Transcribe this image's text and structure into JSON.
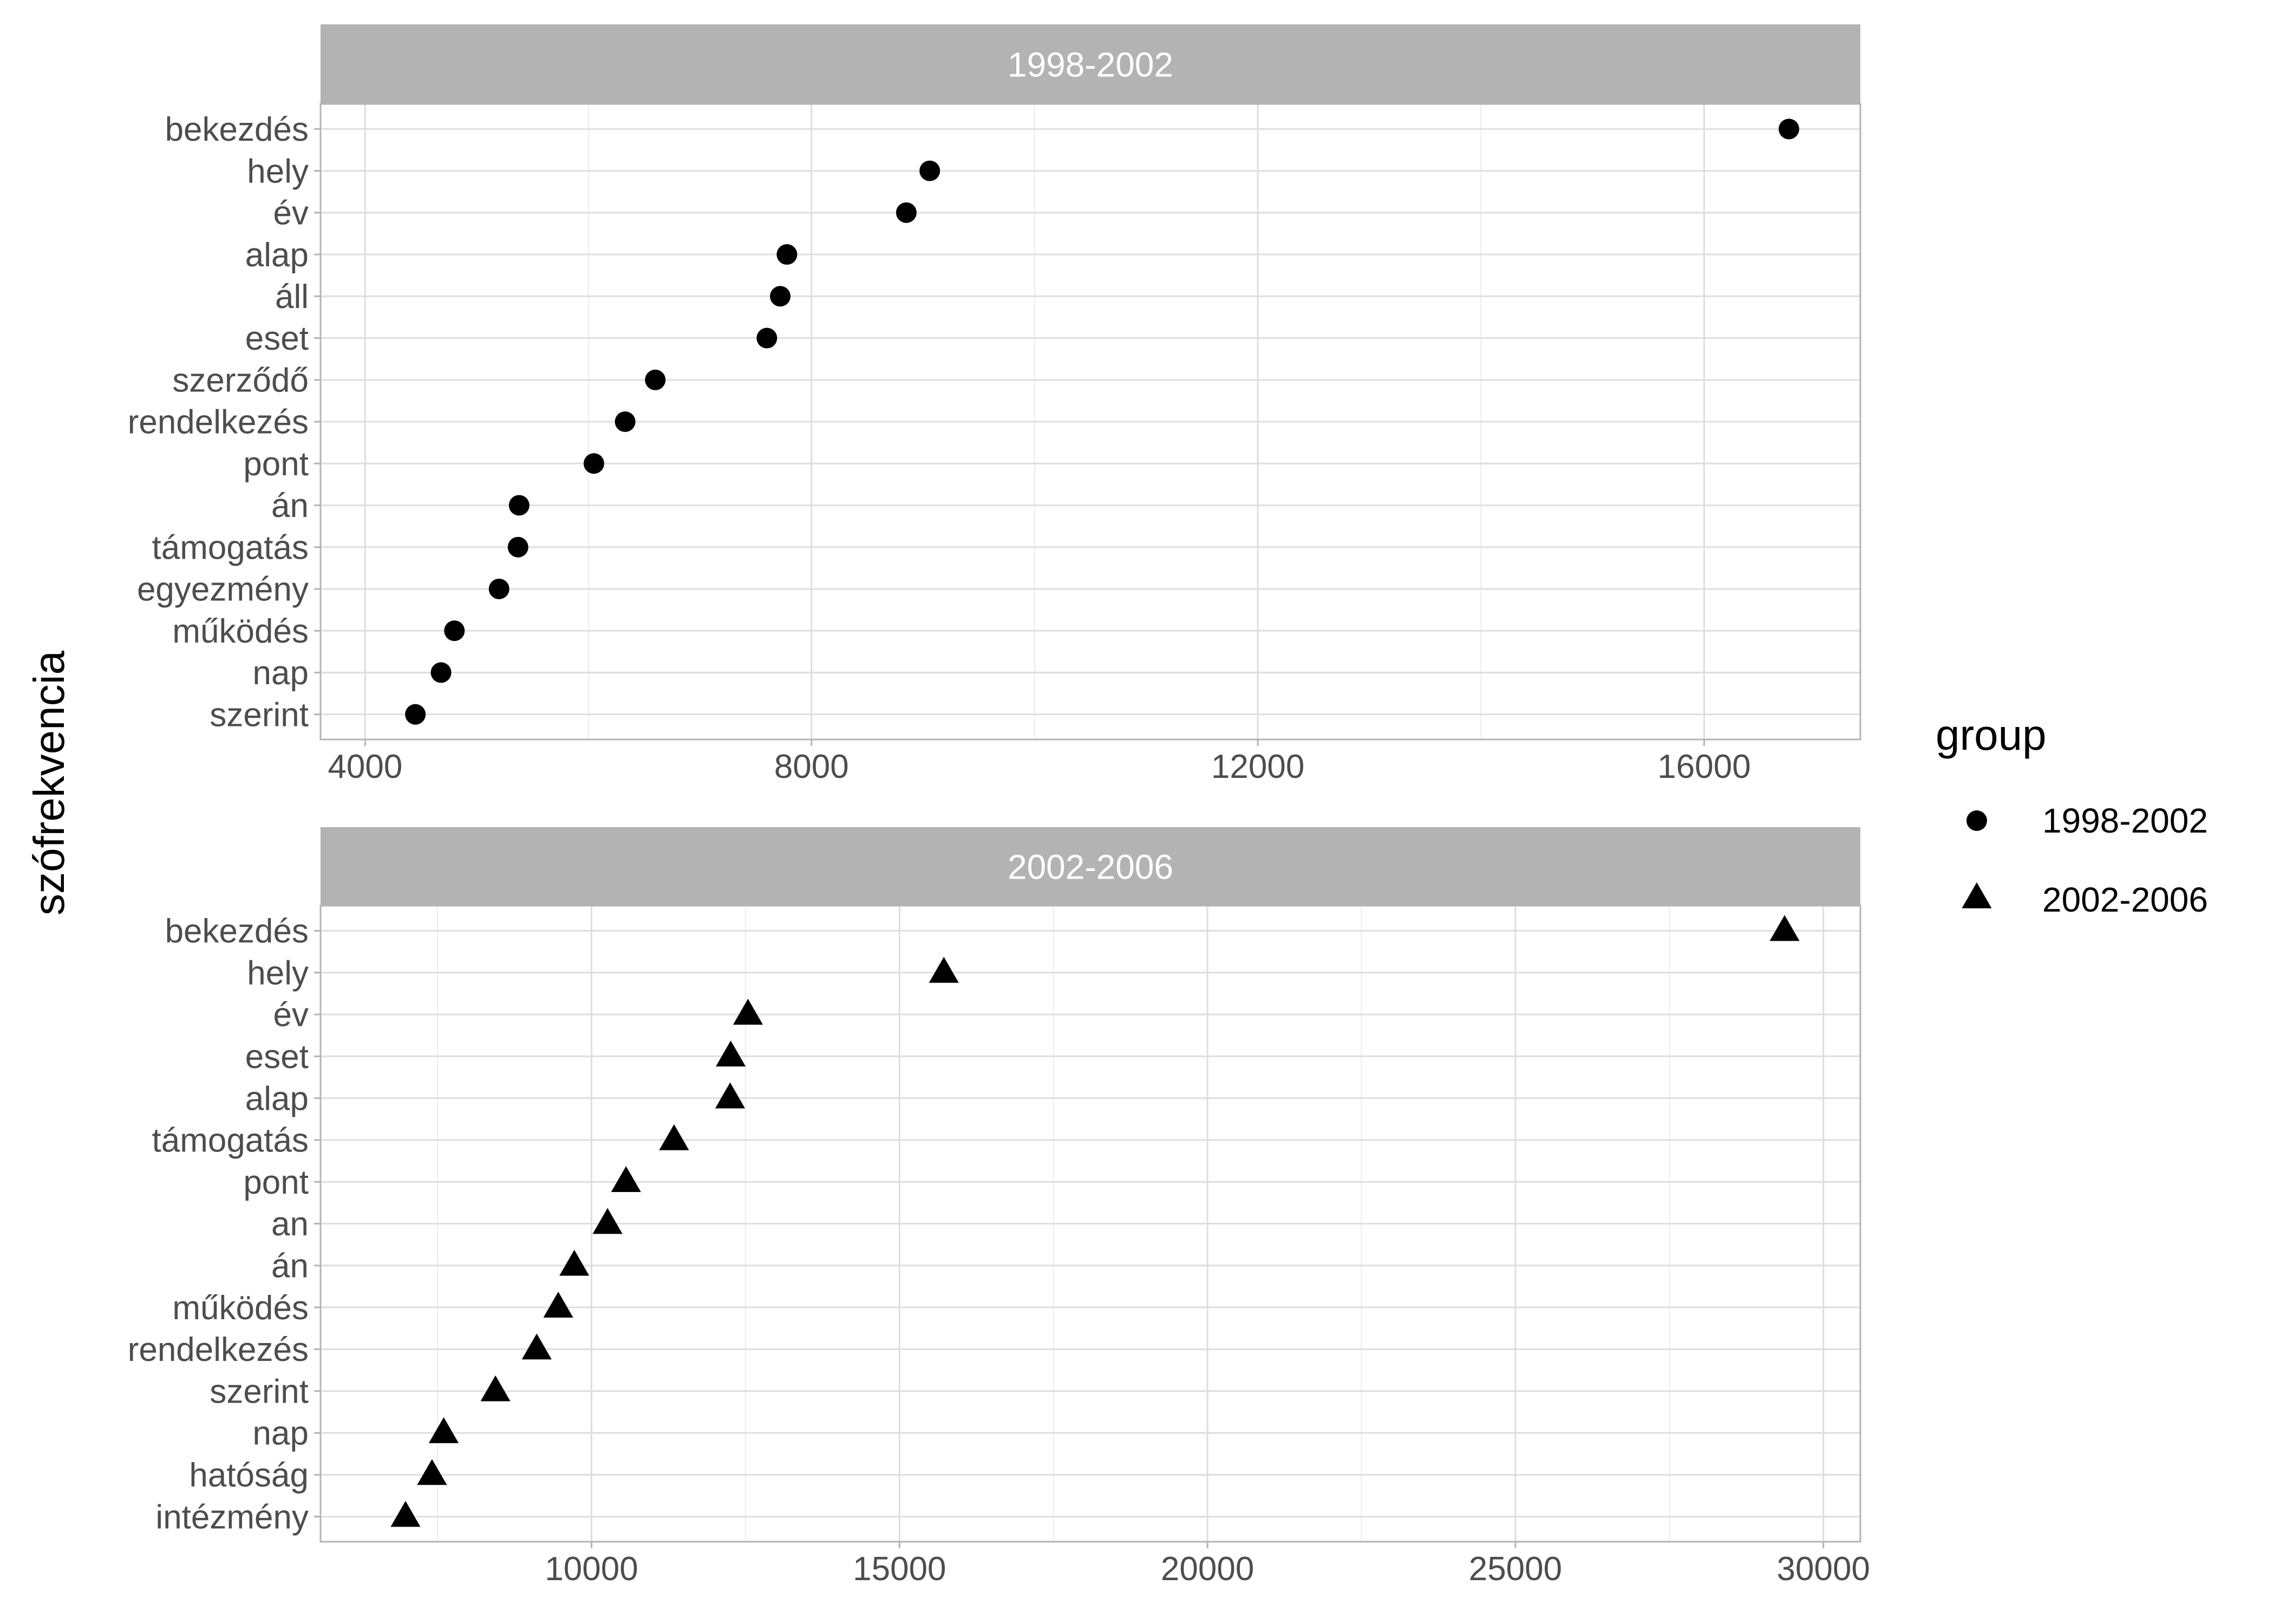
{
  "chart_data": {
    "type": "scatter",
    "ylabel": "szófrekvencia",
    "legend": {
      "title": "group",
      "position": "right",
      "entries": [
        {
          "label": "1998-2002",
          "shape": "circle"
        },
        {
          "label": "2002-2006",
          "shape": "triangle"
        }
      ]
    },
    "panels": [
      {
        "title": "1998-2002",
        "marker": "circle",
        "xlim": [
          3600,
          17400
        ],
        "xticks": [
          4000,
          8000,
          12000,
          16000
        ],
        "categories": [
          "szerint",
          "nap",
          "működés",
          "egyezmény",
          "támogatás",
          "án",
          "pont",
          "rendelkezés",
          "szerződő",
          "eset",
          "áll",
          "alap",
          "év",
          "hely",
          "bekezdés"
        ],
        "values": [
          4450,
          4680,
          4800,
          5200,
          5370,
          5380,
          6050,
          6330,
          6600,
          7600,
          7720,
          7780,
          8850,
          9060,
          16760
        ]
      },
      {
        "title": "2002-2006",
        "marker": "triangle",
        "xlim": [
          5600,
          30600
        ],
        "xticks": [
          10000,
          15000,
          20000,
          25000,
          30000
        ],
        "categories": [
          "intézmény",
          "hatóság",
          "nap",
          "szerint",
          "rendelkezés",
          "működés",
          "án",
          "an",
          "pont",
          "támogatás",
          "alap",
          "eset",
          "év",
          "hely",
          "bekezdés"
        ],
        "values": [
          6980,
          7410,
          7600,
          8440,
          9110,
          9460,
          9720,
          10260,
          10560,
          11340,
          12250,
          12260,
          12540,
          15720,
          29370
        ]
      }
    ],
    "colors": {
      "strip_bg": "#b3b3b3",
      "strip_text": "#ffffff",
      "grid_major": "#dedede",
      "grid_minor": "#ececec",
      "panel_border": "#b3b3b3",
      "axis_text": "#4d4d4d",
      "point": "#000000"
    }
  }
}
